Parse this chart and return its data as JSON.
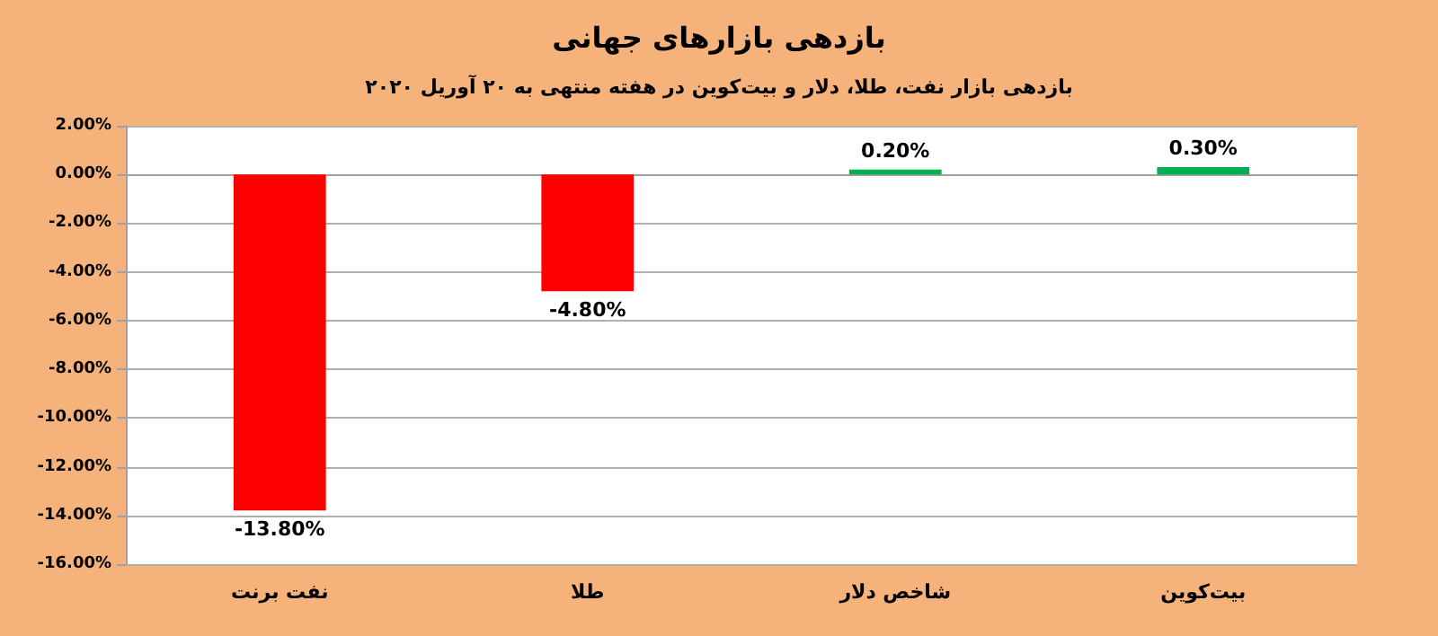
{
  "chart_data": {
    "type": "bar",
    "title": "بازدهی بازارهای جهانی",
    "subtitle": "بازدهی بازار نفت، طلا، دلار و بیت‌کوین در هفته منتهی به ۲۰ آوریل ۲۰۲۰",
    "categories": [
      "نفت برنت",
      "طلا",
      "شاخص دلار",
      "بیت‌کوین"
    ],
    "values": [
      -13.8,
      -4.8,
      0.2,
      0.3
    ],
    "colors": [
      "#ff0000",
      "#ff0000",
      "#00b050",
      "#00b050"
    ],
    "value_labels": [
      "-13.80%",
      "-4.80%",
      "0.20%",
      "0.30%"
    ],
    "ylim": [
      -16,
      2
    ],
    "yticks": [
      {
        "value": -16,
        "label": "-16.00%"
      },
      {
        "value": -14,
        "label": "-14.00%"
      },
      {
        "value": -12,
        "label": "-12.00%"
      },
      {
        "value": -10,
        "label": "-10.00%"
      },
      {
        "value": -8,
        "label": "-8.00%"
      },
      {
        "value": -6,
        "label": "-6.00%"
      },
      {
        "value": -4,
        "label": "-4.00%"
      },
      {
        "value": -2,
        "label": "-2.00%"
      },
      {
        "value": 0,
        "label": "0.00%"
      },
      {
        "value": 2,
        "label": "2.00%"
      }
    ],
    "grid": "y"
  }
}
